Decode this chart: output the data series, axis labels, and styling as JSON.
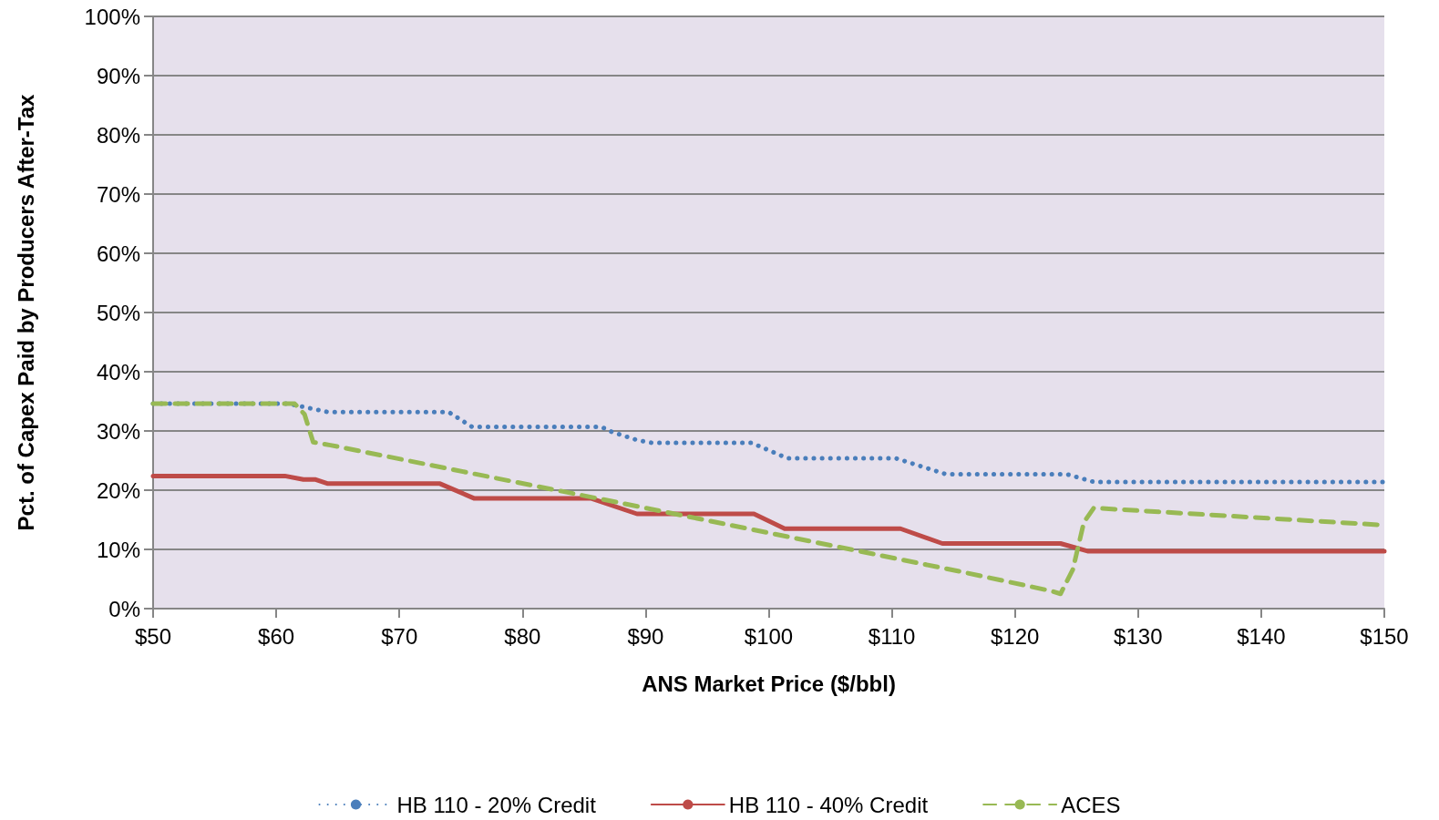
{
  "chart_data": {
    "type": "line",
    "xlabel": "ANS Market Price ($/bbl)",
    "ylabel": "Pct. of Capex Paid by Producers After-Tax",
    "xlim": [
      50,
      150
    ],
    "xticks": [
      {
        "value": 50,
        "label": "$50"
      },
      {
        "value": 60,
        "label": "$60"
      },
      {
        "value": 70,
        "label": "$70"
      },
      {
        "value": 80,
        "label": "$80"
      },
      {
        "value": 90,
        "label": "$90"
      },
      {
        "value": 100,
        "label": "$100"
      },
      {
        "value": 110,
        "label": "$110"
      },
      {
        "value": 120,
        "label": "$120"
      },
      {
        "value": 130,
        "label": "$130"
      },
      {
        "value": 140,
        "label": "$140"
      },
      {
        "value": 150,
        "label": "$150"
      }
    ],
    "ylim": [
      0,
      100
    ],
    "yticks": [
      {
        "value": 0,
        "label": "0%"
      },
      {
        "value": 10,
        "label": "10%"
      },
      {
        "value": 20,
        "label": "20%"
      },
      {
        "value": 30,
        "label": "30%"
      },
      {
        "value": 40,
        "label": "40%"
      },
      {
        "value": 50,
        "label": "50%"
      },
      {
        "value": 60,
        "label": "60%"
      },
      {
        "value": 70,
        "label": "70%"
      },
      {
        "value": 80,
        "label": "80%"
      },
      {
        "value": 90,
        "label": "90%"
      },
      {
        "value": 100,
        "label": "100%"
      }
    ],
    "grid": "y",
    "legend": "bottom",
    "marker": "none",
    "series": [
      {
        "name": "HB 110 - 20% Credit",
        "color": "#4a7ebb",
        "line_style": "dotted",
        "x": [
          50,
          61,
          64.2,
          74,
          75.9,
          86.4,
          87.3,
          89.4,
          90.5,
          98.6,
          101.5,
          110.3,
          114.4,
          124.2,
          126.4,
          150
        ],
        "values": [
          34.6,
          34.6,
          33.2,
          33.2,
          30.7,
          30.7,
          29.8,
          28.4,
          28.0,
          28.0,
          25.4,
          25.4,
          22.7,
          22.7,
          21.4,
          21.4
        ]
      },
      {
        "name": "HB 110 - 40% Credit",
        "color": "#be4b48",
        "line_style": "solid",
        "x": [
          50,
          60.7,
          62.2,
          63.2,
          64.2,
          73.3,
          76.1,
          85.6,
          89.3,
          98.8,
          101.3,
          110.7,
          114.1,
          123.7,
          125.9,
          150
        ],
        "values": [
          22.4,
          22.4,
          21.8,
          21.8,
          21.1,
          21.1,
          18.6,
          18.6,
          16.0,
          16.0,
          13.5,
          13.5,
          11.0,
          11.0,
          9.7,
          9.7
        ]
      },
      {
        "name": "ACES",
        "color": "#98b954",
        "line_style": "dashed",
        "x": [
          50,
          61.5,
          62.3,
          63,
          64.4,
          90,
          115.7,
          122.9,
          123.7,
          124.7,
          125.6,
          126.4,
          150
        ],
        "values": [
          34.6,
          34.6,
          32.8,
          28.1,
          27.6,
          17.0,
          6.2,
          3.0,
          2.5,
          6.6,
          14.6,
          17.0,
          14.1
        ]
      }
    ]
  }
}
